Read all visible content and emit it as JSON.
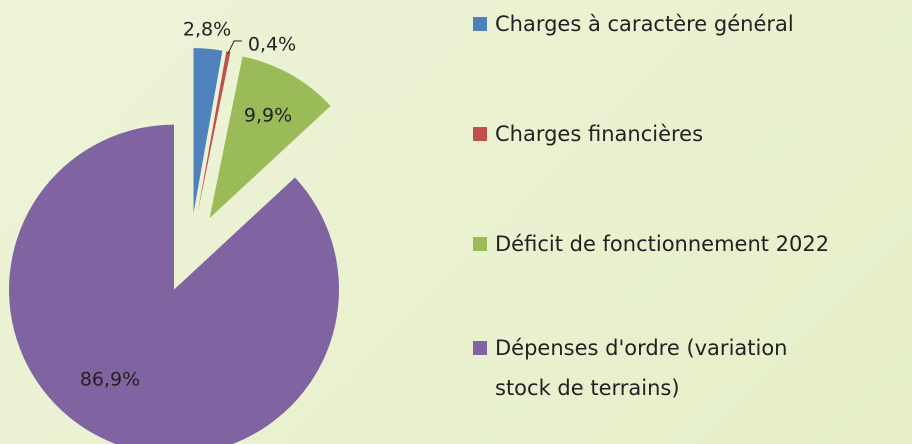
{
  "chart_data": {
    "type": "pie",
    "categories": [
      "Charges à caractère général",
      "Charges financières",
      "Déficit de fonctionnement 2022",
      "Dépenses d'ordre (variation stock de terrains)"
    ],
    "values": [
      2.8,
      0.4,
      9.9,
      86.9
    ],
    "value_labels": [
      "2,8%",
      "0,4%",
      "9,9%",
      "86,9%"
    ],
    "colors": [
      "#4f81bd",
      "#c0504d",
      "#9bbb59",
      "#8064a2"
    ],
    "legend": "right"
  }
}
